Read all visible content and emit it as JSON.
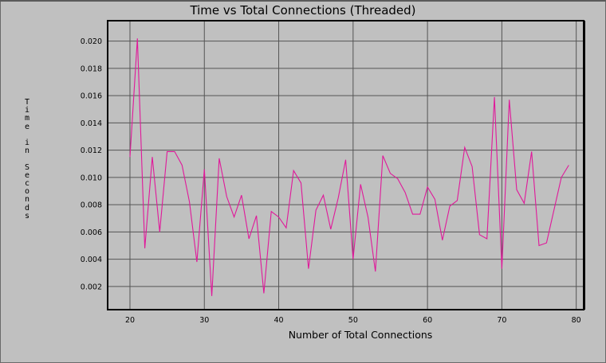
{
  "chart_data": {
    "type": "line",
    "title": "Time vs Total Connections (Threaded)",
    "xlabel": "Number of Total Connections",
    "ylabel": "Time in Seconds",
    "xlim": [
      17,
      81
    ],
    "ylim": [
      0.0003,
      0.0215
    ],
    "x_ticks": [
      "20",
      "30",
      "40",
      "50",
      "60",
      "70",
      "80"
    ],
    "y_ticks": [
      "0.002",
      "0.004",
      "0.006",
      "0.008",
      "0.010",
      "0.012",
      "0.014",
      "0.016",
      "0.018",
      "0.020"
    ],
    "grid": true,
    "line_color": "#e0189a",
    "series": [
      {
        "x": [
          20,
          21,
          22,
          23,
          24,
          25,
          26,
          27,
          28,
          29,
          30,
          31,
          32,
          33,
          34,
          35,
          36,
          37,
          38,
          39,
          40,
          41,
          42,
          43,
          44,
          45,
          46,
          47,
          48,
          49,
          50,
          51,
          52,
          53,
          54,
          55,
          56,
          57,
          58,
          59,
          60,
          61,
          62,
          63,
          64,
          65,
          66,
          67,
          68,
          69,
          70,
          71,
          72,
          73,
          74,
          75,
          76,
          77,
          78,
          79
        ],
        "values": [
          0.0115,
          0.0202,
          0.0048,
          0.0115,
          0.006,
          0.0119,
          0.0119,
          0.0109,
          0.0082,
          0.0038,
          0.0106,
          0.0013,
          0.0114,
          0.0086,
          0.0071,
          0.0087,
          0.0055,
          0.0072,
          0.0015,
          0.0075,
          0.0071,
          0.0063,
          0.0105,
          0.0096,
          0.0033,
          0.0076,
          0.0087,
          0.0062,
          0.0085,
          0.0113,
          0.004,
          0.0095,
          0.0071,
          0.0031,
          0.0116,
          0.0103,
          0.0099,
          0.0089,
          0.0073,
          0.0073,
          0.0093,
          0.0084,
          0.0054,
          0.0079,
          0.0083,
          0.0122,
          0.0108,
          0.0058,
          0.0055,
          0.0159,
          0.0033,
          0.0157,
          0.0091,
          0.0081,
          0.0119,
          0.005,
          0.0052,
          0.0076,
          0.01,
          0.0109
        ]
      }
    ]
  }
}
